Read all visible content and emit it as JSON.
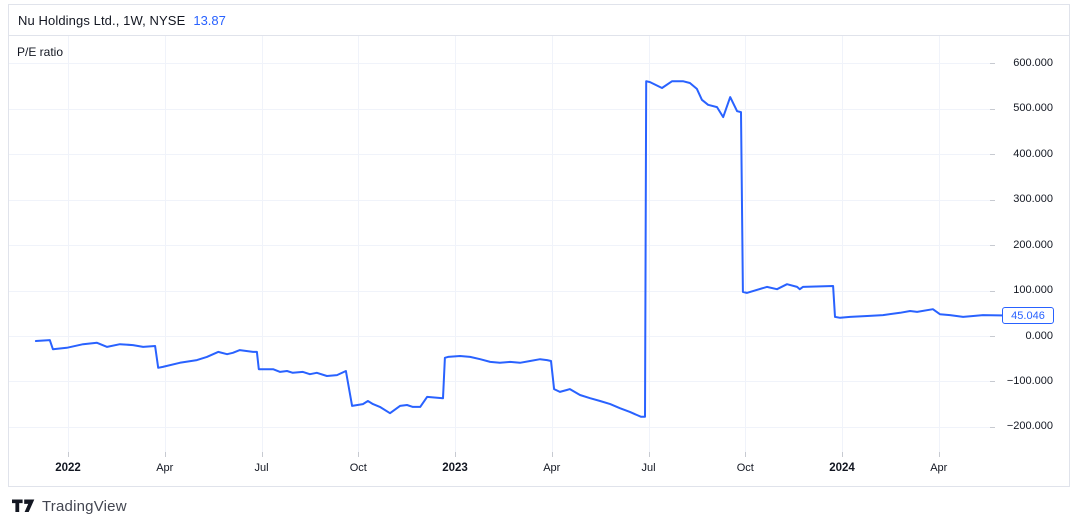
{
  "header": {
    "symbol": "Nu Holdings Ltd., 1W, NYSE",
    "last_value": "13.87"
  },
  "pane": {
    "indicator_label": "P/E ratio",
    "price_badge": "45.046"
  },
  "attribution": {
    "text": "TradingView",
    "logo_icon": "tradingview-tv-mark"
  },
  "colors": {
    "accent_blue": "#2962FF",
    "text_dark": "#131722",
    "grid": "#F0F3FA",
    "border": "#E0E3EB",
    "axis_tick": "#C7CAD1",
    "logo_text": "#434651"
  },
  "chart_data": {
    "type": "line",
    "title": "P/E ratio",
    "symbol": "Nu Holdings Ltd.",
    "interval": "1W",
    "exchange": "NYSE",
    "grid": true,
    "legend_position": "top-left",
    "x_axis": {
      "ticks": [
        {
          "label": "2022",
          "year": 2022.0,
          "bold": true
        },
        {
          "label": "Apr",
          "year": 2022.25,
          "bold": false
        },
        {
          "label": "Jul",
          "year": 2022.5,
          "bold": false
        },
        {
          "label": "Oct",
          "year": 2022.75,
          "bold": false
        },
        {
          "label": "2023",
          "year": 2023.0,
          "bold": true
        },
        {
          "label": "Apr",
          "year": 2023.25,
          "bold": false
        },
        {
          "label": "Jul",
          "year": 2023.5,
          "bold": false
        },
        {
          "label": "Oct",
          "year": 2023.75,
          "bold": false
        },
        {
          "label": "2024",
          "year": 2024.0,
          "bold": true
        },
        {
          "label": "Apr",
          "year": 2024.25,
          "bold": false
        }
      ]
    },
    "y_axis": {
      "ticks": [
        {
          "label": "600.000",
          "value": 600
        },
        {
          "label": "500.000",
          "value": 500
        },
        {
          "label": "400.000",
          "value": 400
        },
        {
          "label": "300.000",
          "value": 300
        },
        {
          "label": "200.000",
          "value": 200
        },
        {
          "label": "100.000",
          "value": 100
        },
        {
          "label": "0.000",
          "value": 0
        },
        {
          "label": "−100.000",
          "value": -100
        },
        {
          "label": "−200.000",
          "value": -200
        }
      ],
      "last": {
        "label": "45.046",
        "value": 45.046
      },
      "range": [
        -230,
        630
      ]
    },
    "series": [
      {
        "name": "P/E ratio",
        "color": "#2962FF",
        "points": [
          [
            2021.917,
            -11
          ],
          [
            2021.953,
            -9
          ],
          [
            2021.961,
            -29
          ],
          [
            2021.997,
            -26
          ],
          [
            2022.039,
            -18
          ],
          [
            2022.075,
            -15
          ],
          [
            2022.101,
            -24
          ],
          [
            2022.134,
            -18
          ],
          [
            2022.168,
            -20
          ],
          [
            2022.194,
            -24
          ],
          [
            2022.225,
            -22
          ],
          [
            2022.233,
            -70
          ],
          [
            2022.245,
            -68
          ],
          [
            2022.289,
            -59
          ],
          [
            2022.333,
            -53
          ],
          [
            2022.359,
            -46
          ],
          [
            2022.388,
            -35
          ],
          [
            2022.411,
            -40
          ],
          [
            2022.426,
            -37
          ],
          [
            2022.444,
            -31
          ],
          [
            2022.478,
            -35
          ],
          [
            2022.488,
            -35
          ],
          [
            2022.493,
            -73
          ],
          [
            2022.53,
            -73
          ],
          [
            2022.548,
            -79
          ],
          [
            2022.566,
            -77
          ],
          [
            2022.581,
            -81
          ],
          [
            2022.607,
            -79
          ],
          [
            2022.625,
            -84
          ],
          [
            2022.643,
            -81
          ],
          [
            2022.669,
            -88
          ],
          [
            2022.695,
            -86
          ],
          [
            2022.718,
            -77
          ],
          [
            2022.734,
            -154
          ],
          [
            2022.762,
            -150
          ],
          [
            2022.775,
            -143
          ],
          [
            2022.788,
            -150
          ],
          [
            2022.806,
            -156
          ],
          [
            2022.832,
            -170
          ],
          [
            2022.858,
            -154
          ],
          [
            2022.876,
            -152
          ],
          [
            2022.891,
            -156
          ],
          [
            2022.91,
            -156
          ],
          [
            2022.928,
            -134
          ],
          [
            2022.969,
            -137
          ],
          [
            2022.974,
            -48
          ],
          [
            2022.982,
            -46
          ],
          [
            2023.013,
            -44
          ],
          [
            2023.039,
            -46
          ],
          [
            2023.065,
            -51
          ],
          [
            2023.091,
            -57
          ],
          [
            2023.116,
            -59
          ],
          [
            2023.142,
            -57
          ],
          [
            2023.168,
            -59
          ],
          [
            2023.194,
            -55
          ],
          [
            2023.22,
            -51
          ],
          [
            2023.238,
            -53
          ],
          [
            2023.248,
            -55
          ],
          [
            2023.256,
            -117
          ],
          [
            2023.271,
            -123
          ],
          [
            2023.289,
            -119
          ],
          [
            2023.297,
            -117
          ],
          [
            2023.323,
            -130
          ],
          [
            2023.349,
            -137
          ],
          [
            2023.375,
            -143
          ],
          [
            2023.401,
            -150
          ],
          [
            2023.426,
            -159
          ],
          [
            2023.452,
            -167
          ],
          [
            2023.47,
            -174
          ],
          [
            2023.481,
            -178
          ],
          [
            2023.491,
            -178
          ],
          [
            2023.494,
            561
          ],
          [
            2023.504,
            559
          ],
          [
            2023.535,
            546
          ],
          [
            2023.561,
            561
          ],
          [
            2023.589,
            561
          ],
          [
            2023.607,
            557
          ],
          [
            2023.625,
            544
          ],
          [
            2023.638,
            520
          ],
          [
            2023.654,
            509
          ],
          [
            2023.677,
            504
          ],
          [
            2023.693,
            482
          ],
          [
            2023.711,
            526
          ],
          [
            2023.729,
            495
          ],
          [
            2023.739,
            493
          ],
          [
            2023.744,
            97
          ],
          [
            2023.754,
            95
          ],
          [
            2023.806,
            108
          ],
          [
            2023.832,
            103
          ],
          [
            2023.858,
            114
          ],
          [
            2023.884,
            108
          ],
          [
            2023.891,
            103
          ],
          [
            2023.899,
            108
          ],
          [
            2023.977,
            110
          ],
          [
            2023.982,
            42
          ],
          [
            2023.995,
            40
          ],
          [
            2024.021,
            42
          ],
          [
            2024.065,
            44
          ],
          [
            2024.106,
            46
          ],
          [
            2024.15,
            51
          ],
          [
            2024.176,
            55
          ],
          [
            2024.194,
            53
          ],
          [
            2024.235,
            59
          ],
          [
            2024.253,
            48
          ],
          [
            2024.279,
            46
          ],
          [
            2024.313,
            42
          ],
          [
            2024.339,
            44
          ],
          [
            2024.364,
            46
          ],
          [
            2024.426,
            45.046
          ]
        ]
      }
    ]
  }
}
